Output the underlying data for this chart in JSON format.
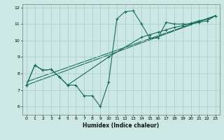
{
  "xlabel": "Humidex (Indice chaleur)",
  "bg_color": "#cce8e4",
  "line_color": "#1a6b5a",
  "grid_color": "#aacfca",
  "xlim": [
    -0.5,
    23.5
  ],
  "ylim": [
    5.5,
    12.2
  ],
  "xticks": [
    0,
    1,
    2,
    3,
    4,
    5,
    6,
    7,
    8,
    9,
    10,
    11,
    12,
    13,
    14,
    15,
    16,
    17,
    18,
    19,
    20,
    21,
    22,
    23
  ],
  "yticks": [
    6,
    7,
    8,
    9,
    10,
    11,
    12
  ],
  "line1_x": [
    0,
    1,
    2,
    3,
    4,
    5,
    6,
    7,
    8,
    9,
    10,
    11,
    12,
    13,
    14,
    15,
    16,
    17,
    18,
    19,
    20,
    21,
    22,
    23
  ],
  "line1_y": [
    7.3,
    8.5,
    8.2,
    8.25,
    7.8,
    7.3,
    7.3,
    6.65,
    6.65,
    6.0,
    7.5,
    11.3,
    11.75,
    11.8,
    11.0,
    10.15,
    10.15,
    11.1,
    11.0,
    11.0,
    11.0,
    11.1,
    11.2,
    11.5
  ],
  "line2_x": [
    0,
    1,
    2,
    3,
    4,
    5,
    10,
    14,
    15,
    16,
    17,
    18,
    19,
    20,
    21,
    22,
    23
  ],
  "line2_y": [
    7.3,
    8.5,
    8.2,
    8.25,
    7.8,
    7.3,
    9.0,
    10.2,
    10.35,
    10.5,
    10.65,
    10.8,
    10.9,
    11.05,
    11.2,
    11.3,
    11.5
  ],
  "line3_x": [
    0,
    23
  ],
  "line3_y": [
    7.3,
    11.5
  ],
  "line4_x": [
    0,
    23
  ],
  "line4_y": [
    7.5,
    11.5
  ]
}
